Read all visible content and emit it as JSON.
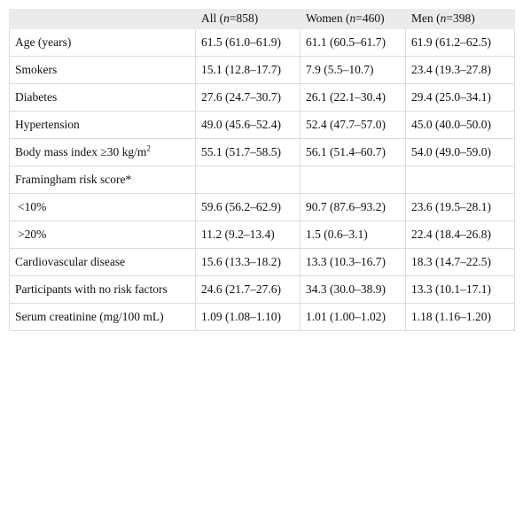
{
  "table": {
    "header": [
      {
        "pre": "All (",
        "em": "n",
        "post": "=858)"
      },
      {
        "pre": "Women (",
        "em": "n",
        "post": "=460)"
      },
      {
        "pre": "Men (",
        "em": "n",
        "post": "=398)"
      }
    ],
    "rows": [
      [
        "Age (years)",
        "61.5 (61.0–61.9)",
        "61.1 (60.5–61.7)",
        "61.9 (61.2–62.5)"
      ],
      [
        "Smokers",
        "15.1 (12.8–17.7)",
        "7.9 (5.5–10.7)",
        "23.4 (19.3–27.8)"
      ],
      [
        "Diabetes",
        "27.6 (24.7–30.7)",
        "26.1 (22.1–30.4)",
        "29.4 (25.0–34.1)"
      ],
      [
        "Hypertension",
        "49.0 (45.6–52.4)",
        "52.4 (47.7–57.0)",
        "45.0 (40.0–50.0)"
      ],
      [
        {
          "text": "Body mass index ≥30 kg/m",
          "sup": "2"
        },
        "55.1 (51.7–58.5)",
        "56.1 (51.4–60.7)",
        "54.0 (49.0–59.0)"
      ],
      [
        "Framingham risk score*"
      ],
      [
        "<10%",
        "59.6 (56.2–62.9)",
        "90.7 (87.6–93.2)",
        "23.6 (19.5–28.1)"
      ],
      [
        ">20%",
        "11.2 (9.2–13.4)",
        "1.5 (0.6–3.1)",
        "22.4 (18.4–26.8)"
      ],
      [
        "Cardiovascular disease",
        "15.6 (13.3–18.2)",
        "13.3 (10.3–16.7)",
        "18.3 (14.7–22.5)"
      ],
      [
        "Participants with no risk factors",
        "24.6 (21.7–27.6)",
        "34.3 (30.0–38.9)",
        "13.3 (10.1–17.1)"
      ],
      [
        "Serum creatinine (mg/100 mL)",
        "1.09 (1.08–1.10)",
        "1.01 (1.00–1.02)",
        "1.18 (1.16–1.20)"
      ]
    ]
  }
}
